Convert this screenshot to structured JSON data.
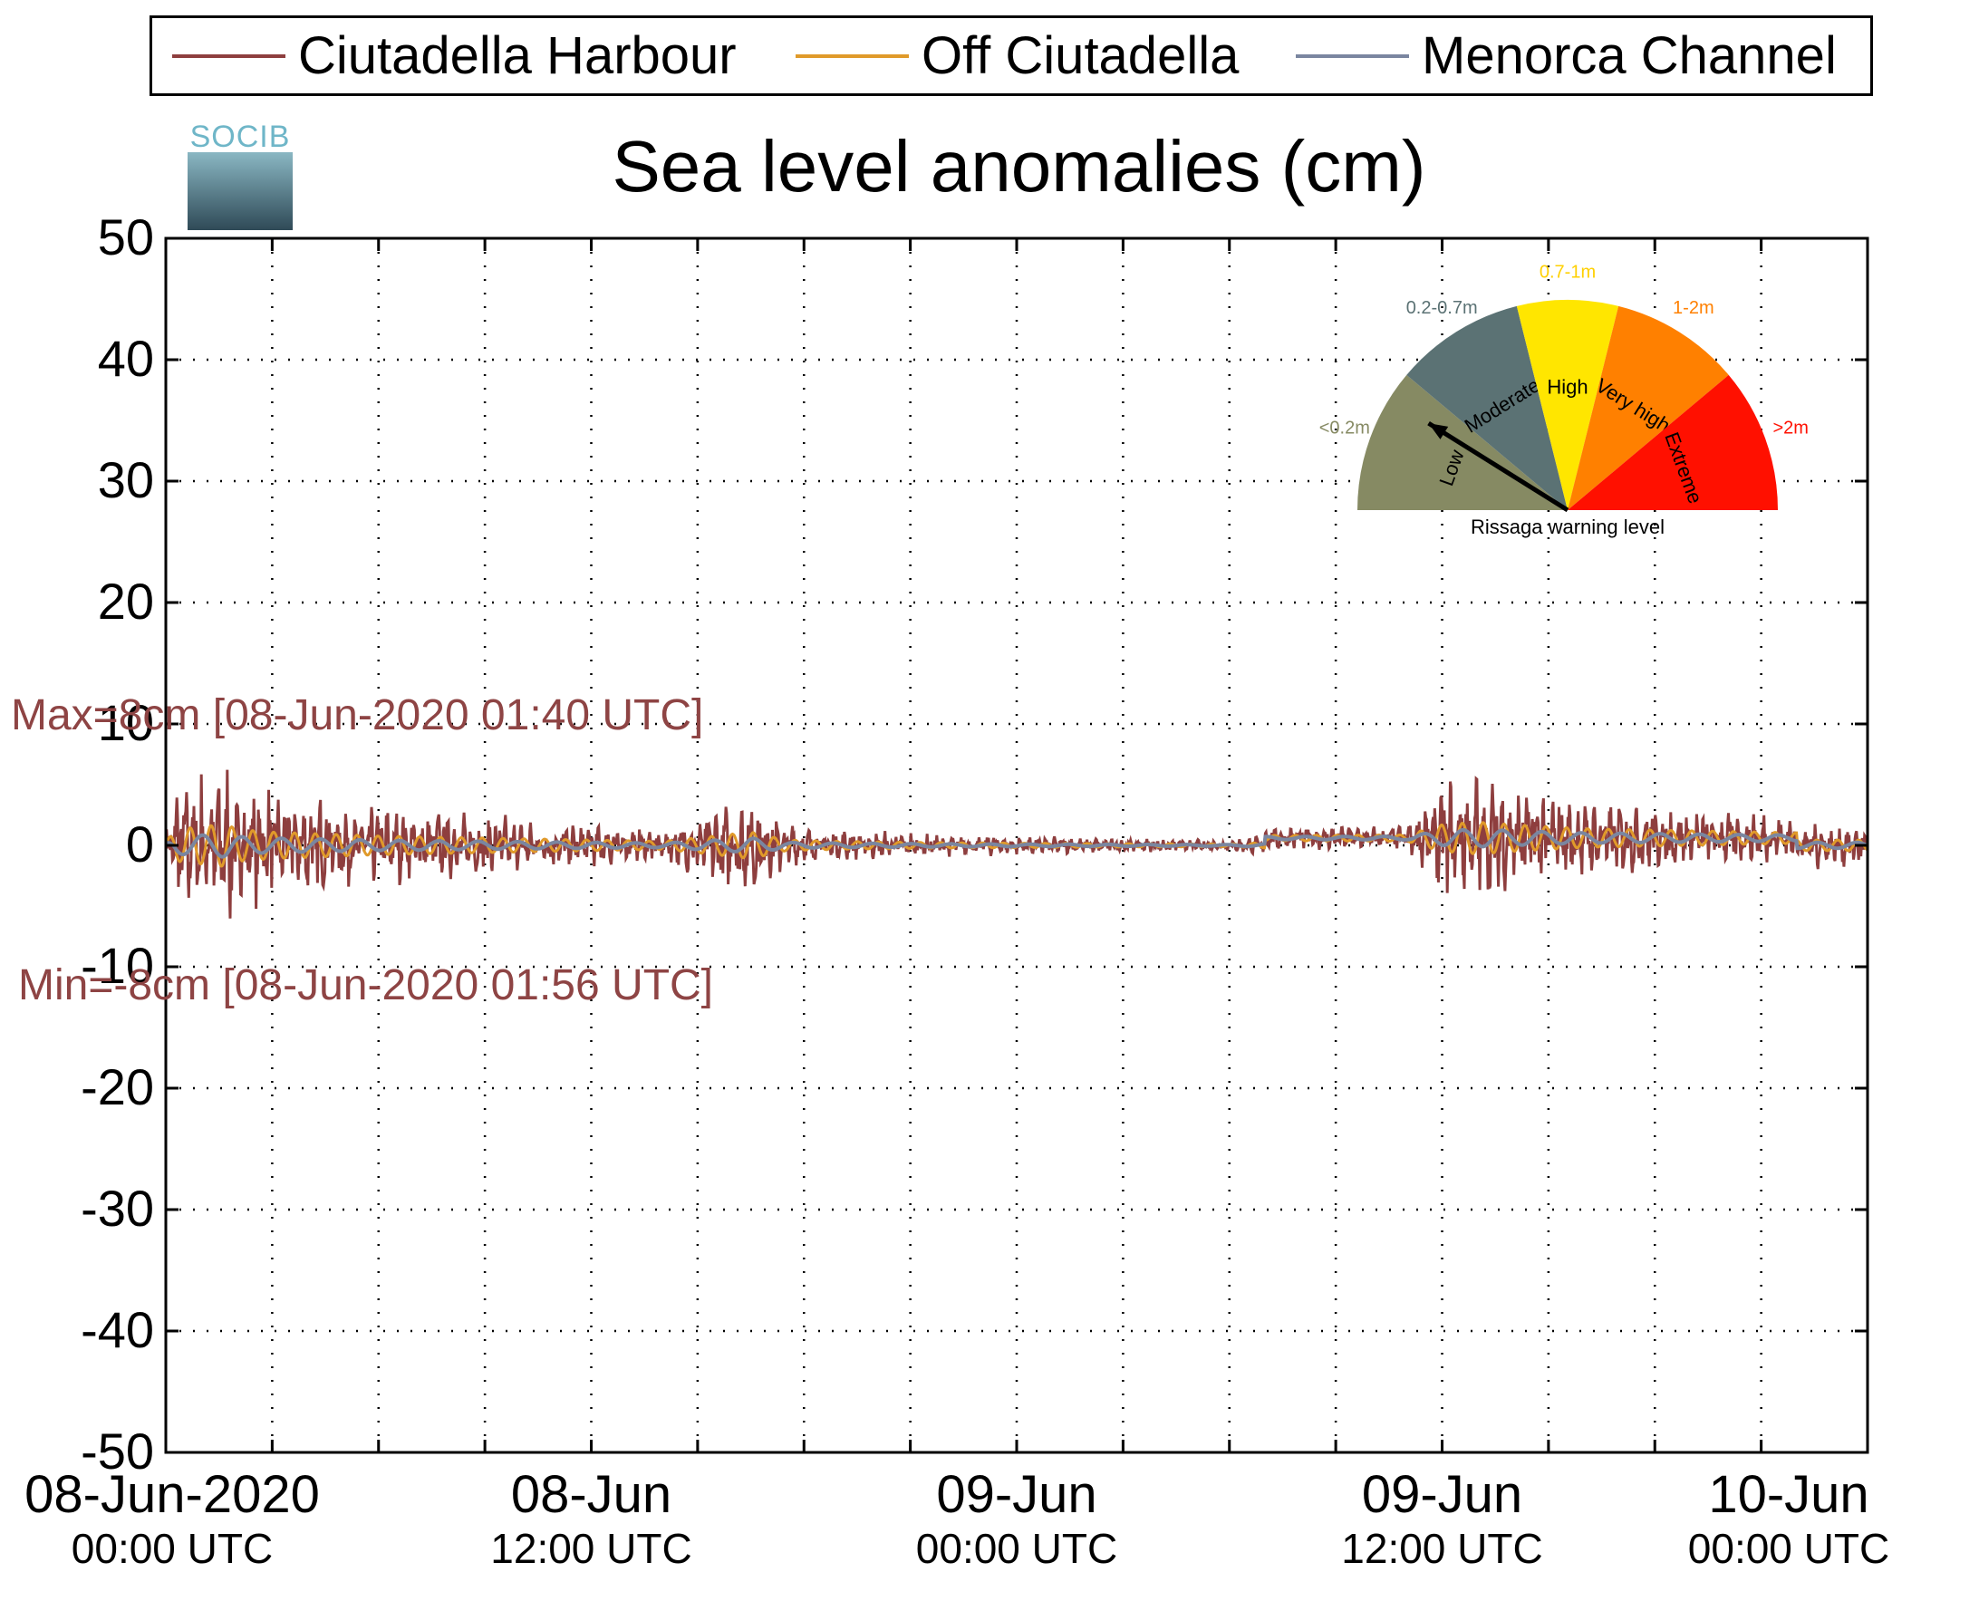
{
  "chart_data": {
    "type": "line",
    "title": "Sea level anomalies (cm)",
    "xlabel": "",
    "ylabel": "",
    "ylim": [
      -50,
      50
    ],
    "yticks": [
      "50",
      "40",
      "30",
      "20",
      "10",
      "0",
      "-10",
      "-20",
      "-30",
      "-40",
      "-50"
    ],
    "xlim_hours": [
      0,
      48
    ],
    "xticks": [
      {
        "date": "08-Jun-2020",
        "time": "00:00 UTC"
      },
      {
        "date": "08-Jun",
        "time": "12:00 UTC"
      },
      {
        "date": "09-Jun",
        "time": "00:00 UTC"
      },
      {
        "date": "09-Jun",
        "time": "12:00 UTC"
      },
      {
        "date": "10-Jun",
        "time": "00:00 UTC"
      }
    ],
    "grid": true,
    "legend_position": "top",
    "series": [
      {
        "name": "Ciutadella Harbour",
        "color": "#8e3e3e",
        "envelope": {
          "hours": [
            0,
            0.3,
            1.0,
            1.7,
            2.0,
            3.0,
            4.0,
            5.0,
            6.0,
            8.0,
            10.0,
            12.0,
            14.0,
            15.5,
            16.5,
            17.5,
            19.0,
            22.0,
            26.0,
            30.0,
            31.0,
            35.0,
            36.0,
            37.0,
            38.0,
            40.0,
            42.0,
            44.0,
            46.0,
            48.0
          ],
          "amplitude": [
            1.5,
            6.0,
            7.0,
            8.0,
            6.0,
            5.0,
            4.5,
            4.0,
            3.5,
            3.0,
            2.5,
            2.0,
            1.5,
            3.5,
            5.0,
            2.0,
            1.5,
            1.0,
            0.7,
            0.5,
            1.0,
            1.2,
            5.0,
            6.0,
            5.0,
            3.5,
            3.0,
            2.5,
            2.0,
            2.0
          ]
        }
      },
      {
        "name": "Off Ciutadella",
        "color": "#e09a2a"
      },
      {
        "name": "Menorca Channel",
        "color": "#7a86a0"
      }
    ],
    "annotations": {
      "max": "Max=8cm [08-Jun-2020 01:40 UTC]",
      "min": "Min=-8cm [08-Jun-2020 01:56 UTC]"
    }
  },
  "logo": {
    "text": "SOCIB"
  },
  "gauge": {
    "caption": "Rissaga warning level",
    "pointer_level": "Low",
    "segments": [
      {
        "name": "Low",
        "range": "<0.2m",
        "color": "#868a63",
        "range_color": "#868a63"
      },
      {
        "name": "Moderate",
        "range": "0.2-0.7m",
        "color": "#5b7274",
        "range_color": "#5b7274"
      },
      {
        "name": "High",
        "range": "0.7-1m",
        "color": "#ffe600",
        "range_color": "#ffd000"
      },
      {
        "name": "Very high",
        "range": "1-2m",
        "color": "#ff8000",
        "range_color": "#ff8000"
      },
      {
        "name": "Extreme",
        "range": ">2m",
        "color": "#ff1000",
        "range_color": "#ff1000"
      }
    ]
  }
}
